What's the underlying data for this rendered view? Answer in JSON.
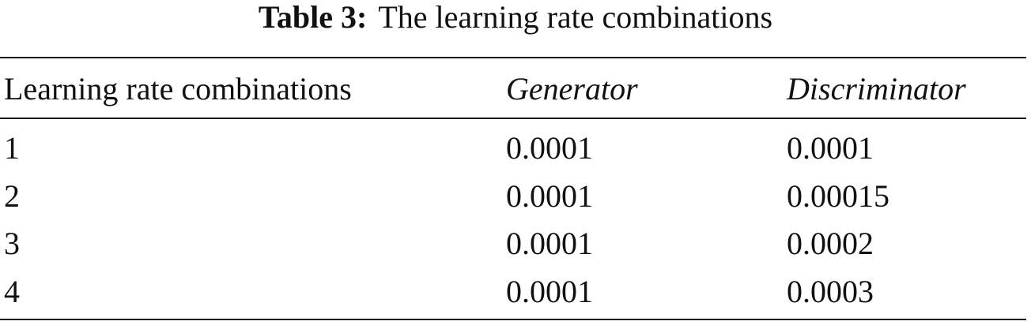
{
  "caption": {
    "label": "Table 3:",
    "text": "The learning rate combinations"
  },
  "table": {
    "header": [
      "Learning rate combinations",
      "Generator",
      "Discriminator"
    ],
    "rows": [
      [
        "1",
        "0.0001",
        "0.0001"
      ],
      [
        "2",
        "0.0001",
        "0.00015"
      ],
      [
        "3",
        "0.0001",
        "0.0002"
      ],
      [
        "4",
        "0.0001",
        "0.0003"
      ]
    ]
  }
}
